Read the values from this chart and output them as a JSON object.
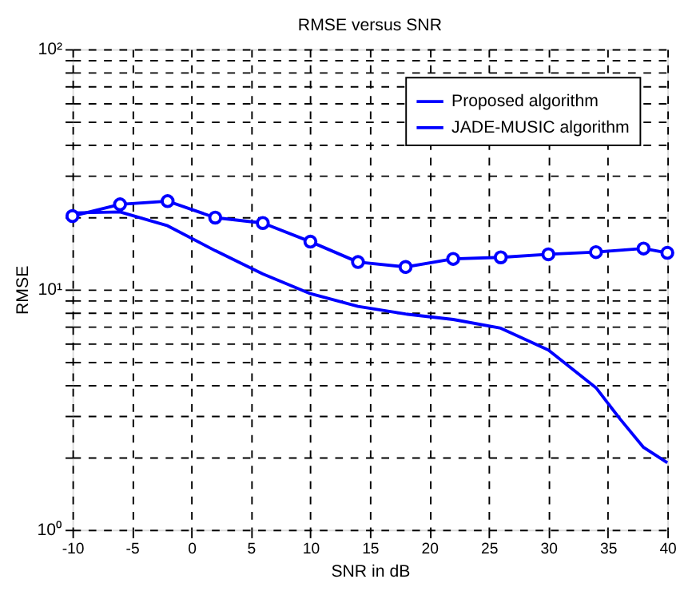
{
  "chart_data": {
    "type": "line",
    "title": "RMSE versus SNR",
    "xlabel": "SNR in dB",
    "ylabel": "RMSE",
    "series": [
      {
        "name": "Proposed algorithm",
        "color": "#0000ff",
        "marker": "none",
        "x": [
          -10,
          -6,
          -2,
          2,
          6,
          10,
          14,
          18,
          22,
          26,
          30,
          34,
          36,
          38,
          40
        ],
        "values": [
          20.8,
          21.0,
          18.4,
          14.5,
          11.6,
          9.6,
          8.5,
          7.9,
          7.5,
          6.9,
          5.6,
          3.9,
          2.9,
          2.2,
          1.9
        ]
      },
      {
        "name": "JADE-MUSIC algorithm",
        "color": "#0000ff",
        "marker": "circle",
        "x": [
          -10,
          -6,
          -2,
          2,
          6,
          10,
          14,
          18,
          22,
          26,
          30,
          34,
          38,
          40
        ],
        "values": [
          20.2,
          22.6,
          23.3,
          19.9,
          18.9,
          15.8,
          13.0,
          12.4,
          13.4,
          13.6,
          14.0,
          14.3,
          14.8,
          14.2
        ]
      }
    ],
    "xlim": [
      -10,
      40
    ],
    "xticks": [
      -10,
      -5,
      0,
      5,
      10,
      15,
      20,
      25,
      30,
      35,
      40
    ],
    "ylim": [
      1,
      100
    ],
    "log": true,
    "yticks": [
      {
        "value": 1,
        "label": "10⁰"
      },
      {
        "value": 2,
        "label": null
      },
      {
        "value": 3,
        "label": null
      },
      {
        "value": 4,
        "label": null
      },
      {
        "value": 5,
        "label": null
      },
      {
        "value": 6,
        "label": null
      },
      {
        "value": 7,
        "label": null
      },
      {
        "value": 8,
        "label": null
      },
      {
        "value": 9,
        "label": null
      },
      {
        "value": 10,
        "label": "10¹"
      },
      {
        "value": 20,
        "label": null
      },
      {
        "value": 30,
        "label": null
      },
      {
        "value": 40,
        "label": null
      },
      {
        "value": 50,
        "label": null
      },
      {
        "value": 60,
        "label": null
      },
      {
        "value": 70,
        "label": null
      },
      {
        "value": 80,
        "label": null
      },
      {
        "value": 90,
        "label": null
      },
      {
        "value": 100,
        "label": "10²"
      }
    ],
    "grid": true,
    "legend": "top right",
    "line_style": "solid"
  }
}
